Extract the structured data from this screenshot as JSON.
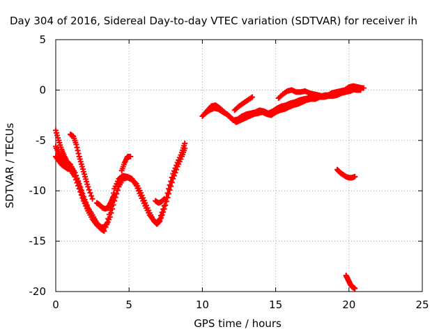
{
  "chart_data": {
    "type": "scatter",
    "title": "Day 304 of 2016, Sidereal Day-to-day VTEC variation (SDTVAR) for receiver ih",
    "xlabel": "GPS time / hours",
    "ylabel": "SDTVAR / TECUs",
    "xlim": [
      0,
      25
    ],
    "ylim": [
      -20,
      5
    ],
    "xticks": [
      0,
      5,
      10,
      15,
      20,
      25
    ],
    "yticks": [
      5,
      0,
      -5,
      -10,
      -15,
      -20
    ],
    "grid": true,
    "marker": "plus",
    "color": "#ff0000",
    "series": [
      {
        "x": [
          0.0,
          0.2,
          0.4,
          0.6,
          0.8,
          1.0,
          1.3,
          1.6,
          1.9,
          2.2,
          2.5,
          2.8,
          3.0,
          3.2,
          3.5,
          3.8,
          4.0,
          4.3,
          4.6,
          4.9,
          5.2,
          5.5,
          5.8,
          6.1,
          6.4,
          6.7,
          6.9,
          7.1,
          7.4,
          7.7,
          8.0,
          8.3,
          8.6,
          8.8
        ],
        "y": [
          -4.0,
          -5.0,
          -5.9,
          -6.6,
          -7.2,
          -7.6,
          -8.2,
          -9.3,
          -10.6,
          -11.7,
          -12.4,
          -13.2,
          -13.6,
          -13.8,
          -13.2,
          -11.5,
          -9.8,
          -8.8,
          -8.5,
          -8.6,
          -8.8,
          -9.5,
          -10.5,
          -11.5,
          -12.4,
          -13.0,
          -13.2,
          -12.8,
          -11.5,
          -9.8,
          -8.3,
          -7.2,
          -6.2,
          -5.3
        ]
      },
      {
        "x": [
          0.0,
          0.2,
          0.4,
          0.6,
          0.8,
          1.0,
          1.3,
          1.6,
          1.9,
          2.2,
          2.5,
          2.8,
          3.1,
          3.4,
          3.7,
          4.0,
          4.3,
          4.6,
          4.9,
          5.2,
          5.5,
          5.8,
          6.1,
          6.4,
          6.7,
          6.9,
          7.1,
          7.4,
          7.7,
          8.0,
          8.3,
          8.6,
          8.8
        ],
        "y": [
          -5.6,
          -6.3,
          -6.8,
          -7.1,
          -7.2,
          -7.4,
          -8.2,
          -9.5,
          -10.8,
          -11.8,
          -12.6,
          -13.2,
          -13.6,
          -13.6,
          -12.6,
          -11.0,
          -9.6,
          -8.8,
          -8.7,
          -8.9,
          -9.3,
          -10.2,
          -11.2,
          -12.2,
          -13.0,
          -13.3,
          -13.0,
          -11.8,
          -10.3,
          -8.8,
          -7.6,
          -6.6,
          -5.8
        ]
      },
      {
        "x": [
          0.0,
          0.2,
          0.4,
          0.6,
          0.8,
          1.0,
          1.3,
          1.6,
          1.9,
          2.2,
          2.5,
          2.8,
          3.1,
          3.3
        ],
        "y": [
          -6.6,
          -7.0,
          -7.4,
          -7.6,
          -7.8,
          -7.9,
          -8.6,
          -9.8,
          -11.0,
          -12.0,
          -12.8,
          -13.4,
          -13.8,
          -14.0
        ]
      },
      {
        "x": [
          1.0,
          1.2,
          1.4,
          1.6,
          1.8,
          2.0,
          2.2,
          2.5
        ],
        "y": [
          -4.4,
          -4.6,
          -5.4,
          -6.6,
          -7.6,
          -8.6,
          -9.6,
          -10.8
        ]
      },
      {
        "x": [
          2.8,
          3.0,
          3.2,
          3.4,
          3.6,
          3.8,
          4.0
        ],
        "y": [
          -11.2,
          -11.4,
          -11.7,
          -11.8,
          -11.6,
          -11.0,
          -10.4
        ]
      },
      {
        "x": [
          4.5,
          4.7,
          4.9,
          5.1
        ],
        "y": [
          -8.0,
          -7.2,
          -6.6,
          -6.6
        ]
      },
      {
        "x": [
          6.8,
          7.0,
          7.2,
          7.4
        ],
        "y": [
          -11.0,
          -11.2,
          -11.1,
          -10.8
        ]
      },
      {
        "x": [
          10.0,
          10.3,
          10.6,
          10.9,
          11.2,
          11.5,
          11.8,
          12.1,
          12.4,
          12.7,
          13.0,
          13.3,
          13.6,
          13.9,
          14.2,
          14.5,
          14.8,
          15.1,
          15.4,
          15.7,
          16.0,
          16.3,
          16.6,
          16.9,
          17.2,
          17.5,
          17.8,
          18.1,
          18.4,
          18.7,
          19.0,
          19.3,
          19.6,
          19.9,
          20.2,
          20.5,
          20.8
        ],
        "y": [
          -2.6,
          -2.1,
          -1.6,
          -1.5,
          -1.8,
          -2.2,
          -2.6,
          -3.0,
          -2.9,
          -2.6,
          -2.4,
          -2.3,
          -2.2,
          -2.0,
          -2.1,
          -2.3,
          -2.1,
          -1.8,
          -1.6,
          -1.5,
          -1.3,
          -1.2,
          -1.0,
          -0.9,
          -0.8,
          -0.8,
          -0.6,
          -0.6,
          -0.5,
          -0.5,
          -0.4,
          -0.2,
          -0.1,
          0.0,
          0.1,
          0.0,
          0.0
        ]
      },
      {
        "x": [
          10.2,
          10.5,
          10.8,
          11.1,
          11.4,
          11.7,
          12.0,
          12.3,
          12.6,
          12.9,
          13.2,
          13.5,
          13.8,
          14.1,
          14.4,
          14.7,
          15.0,
          15.3,
          15.6,
          15.9,
          16.2,
          16.5,
          16.8,
          17.1,
          17.4,
          17.7,
          18.0,
          18.3,
          18.6,
          18.9,
          19.2,
          19.5,
          19.8,
          20.1,
          20.4,
          20.7,
          21.0
        ],
        "y": [
          -2.3,
          -2.0,
          -1.8,
          -1.9,
          -2.2,
          -2.4,
          -2.8,
          -3.2,
          -3.0,
          -2.8,
          -2.6,
          -2.4,
          -2.3,
          -2.2,
          -2.4,
          -2.5,
          -2.2,
          -2.0,
          -1.9,
          -1.7,
          -1.5,
          -1.4,
          -1.2,
          -1.0,
          -0.9,
          -0.9,
          -0.7,
          -0.7,
          -0.6,
          -0.6,
          -0.5,
          -0.3,
          -0.2,
          -0.1,
          0.1,
          0.2,
          0.2
        ]
      },
      {
        "x": [
          12.2,
          12.5,
          12.8,
          13.1,
          13.4
        ],
        "y": [
          -2.0,
          -1.6,
          -1.3,
          -1.0,
          -0.7
        ]
      },
      {
        "x": [
          15.2,
          15.5,
          15.8,
          16.1,
          16.4,
          16.7,
          17.0,
          17.3,
          17.6,
          17.9,
          18.2,
          18.5,
          18.8,
          19.1,
          19.4,
          19.7,
          20.0,
          20.3,
          20.6,
          20.9
        ],
        "y": [
          -0.8,
          -0.4,
          -0.1,
          0.0,
          -0.2,
          -0.2,
          -0.1,
          -0.3,
          -0.4,
          -0.5,
          -0.6,
          -0.6,
          -0.3,
          -0.2,
          -0.1,
          0.0,
          0.3,
          0.4,
          0.3,
          0.2
        ]
      },
      {
        "x": [
          19.2,
          19.4,
          19.6,
          19.8,
          20.0,
          20.2,
          20.4
        ],
        "y": [
          -7.9,
          -8.2,
          -8.4,
          -8.6,
          -8.7,
          -8.7,
          -8.6
        ]
      },
      {
        "x": [
          19.8,
          19.9,
          20.0,
          20.1,
          20.2,
          20.3,
          20.4
        ],
        "y": [
          -18.4,
          -18.7,
          -19.0,
          -19.3,
          -19.5,
          -19.6,
          -19.7
        ]
      }
    ]
  }
}
